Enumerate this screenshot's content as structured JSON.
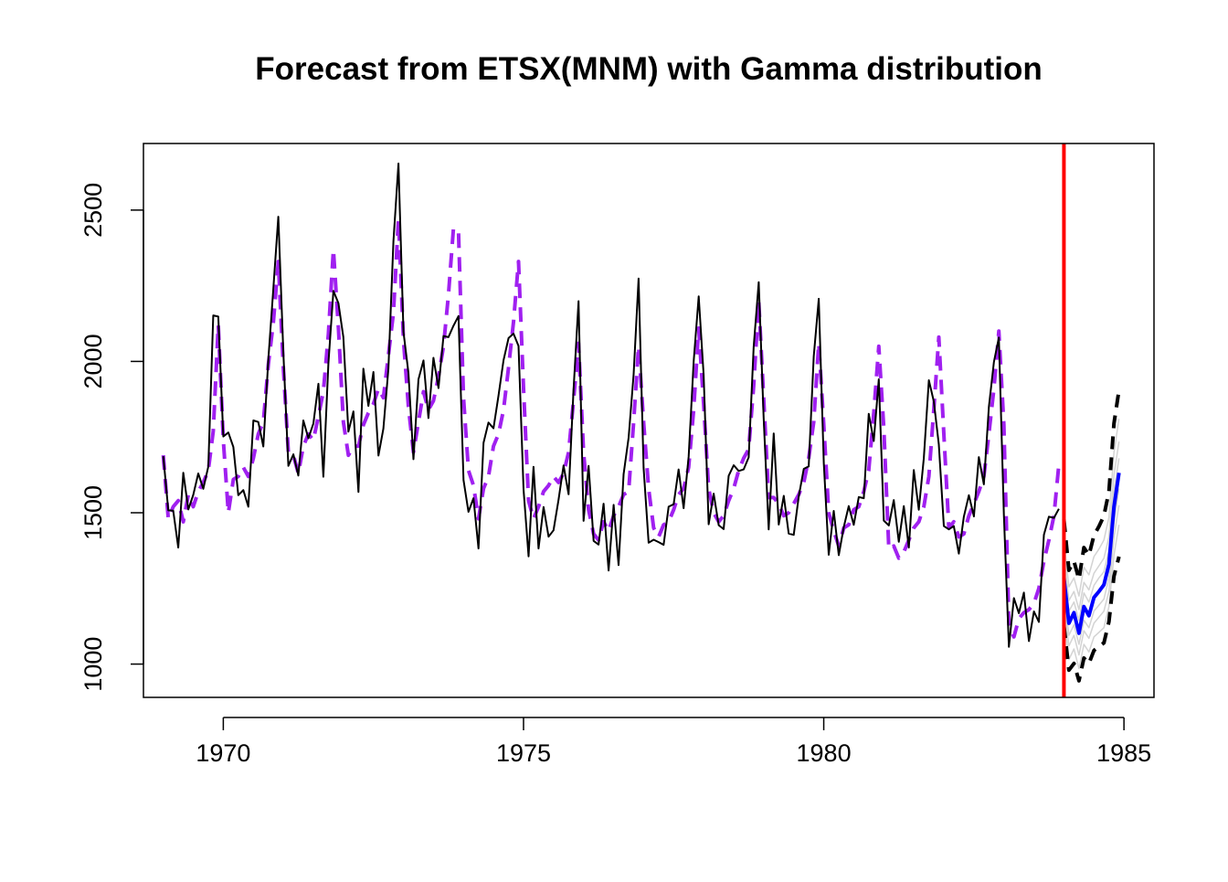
{
  "chart_data": {
    "type": "line",
    "title": "Forecast from ETSX(MNM) with Gamma distribution",
    "xlabel": "",
    "ylabel": "",
    "xlim": [
      1968.67,
      1985.5
    ],
    "ylim": [
      890,
      2720
    ],
    "x_ticks": [
      1970,
      1975,
      1980,
      1985
    ],
    "x_tick_labels": [
      "1970",
      "1975",
      "1980",
      "1985"
    ],
    "y_ticks": [
      1000,
      1500,
      2000,
      2500
    ],
    "y_tick_labels": [
      "1000",
      "1500",
      "2000",
      "2500"
    ],
    "grid": false,
    "legend": "none",
    "holdout_start": 1984.0,
    "colors": {
      "actuals": "#000000",
      "fitted": "#a020f0",
      "forecast": "#0000ff",
      "interval": "#000000",
      "quantiles": "#d3d3d3",
      "holdout_line": "#ff0000"
    },
    "series": [
      {
        "name": "actuals",
        "start": 1969.0,
        "frequency": 12,
        "values": [
          1687,
          1508,
          1507,
          1385,
          1632,
          1511,
          1559,
          1630,
          1579,
          1653,
          2152,
          2148,
          1752,
          1765,
          1717,
          1558,
          1575,
          1520,
          1805,
          1800,
          1719,
          2008,
          2242,
          2478,
          2030,
          1655,
          1693,
          1623,
          1805,
          1746,
          1795,
          1926,
          1619,
          1992,
          2233,
          2192,
          2080,
          1768,
          1835,
          1569,
          1976,
          1853,
          1965,
          1689,
          1778,
          1976,
          2397,
          2654,
          2097,
          1963,
          1677,
          1941,
          2003,
          1813,
          2012,
          1912,
          2084,
          2080,
          2118,
          2150,
          1608,
          1503,
          1548,
          1382,
          1731,
          1798,
          1779,
          1887,
          2004,
          2077,
          2092,
          2051,
          1577,
          1356,
          1652,
          1382,
          1519,
          1421,
          1442,
          1543,
          1656,
          1561,
          1905,
          2199,
          1473,
          1655,
          1407,
          1395,
          1530,
          1309,
          1526,
          1327,
          1627,
          1748,
          1958,
          2274,
          1648,
          1401,
          1411,
          1403,
          1394,
          1520,
          1528,
          1643,
          1515,
          1685,
          2000,
          2215,
          1956,
          1462,
          1563,
          1459,
          1446,
          1622,
          1657,
          1638,
          1643,
          1683,
          2050,
          2262,
          1813,
          1445,
          1762,
          1461,
          1556,
          1431,
          1427,
          1554,
          1645,
          1653,
          2016,
          2207,
          1665,
          1361,
          1506,
          1360,
          1453,
          1522,
          1460,
          1552,
          1548,
          1827,
          1737,
          1941,
          1474,
          1458,
          1542,
          1404,
          1522,
          1385,
          1641,
          1510,
          1681,
          1938,
          1868,
          1726,
          1456,
          1445,
          1456,
          1365,
          1487,
          1558,
          1488,
          1684,
          1594,
          1850,
          1998,
          2079,
          1494,
          1057,
          1218,
          1168,
          1236,
          1076,
          1174,
          1139,
          1427,
          1487,
          1483,
          1513
        ],
        "note_start": "January 1969"
      },
      {
        "name": "fitted",
        "start": 1969.0,
        "frequency": 12,
        "values": [
          1690,
          1480,
          1520,
          1540,
          1470,
          1560,
          1520,
          1570,
          1600,
          1640,
          1770,
          2120,
          1740,
          1500,
          1610,
          1620,
          1650,
          1620,
          1680,
          1760,
          1800,
          1990,
          2130,
          2330,
          1980,
          1700,
          1690,
          1630,
          1720,
          1760,
          1740,
          1820,
          1900,
          2090,
          2370,
          2110,
          1800,
          1690,
          1720,
          1720,
          1790,
          1830,
          1860,
          1910,
          1880,
          2020,
          2160,
          2470,
          2070,
          1850,
          1700,
          1800,
          1900,
          1840,
          1870,
          1950,
          2050,
          2220,
          2440,
          2430,
          1880,
          1640,
          1590,
          1480,
          1580,
          1620,
          1720,
          1760,
          1840,
          1980,
          2130,
          2330,
          1910,
          1540,
          1480,
          1520,
          1570,
          1590,
          1620,
          1600,
          1630,
          1700,
          1870,
          2060,
          1700,
          1510,
          1430,
          1410,
          1470,
          1440,
          1490,
          1520,
          1560,
          1570,
          1800,
          2050,
          1800,
          1580,
          1450,
          1420,
          1460,
          1470,
          1510,
          1560,
          1580,
          1650,
          1840,
          2110,
          1860,
          1580,
          1500,
          1470,
          1490,
          1540,
          1580,
          1640,
          1680,
          1710,
          1920,
          2200,
          1880,
          1550,
          1550,
          1530,
          1490,
          1500,
          1530,
          1560,
          1600,
          1680,
          1800,
          2060,
          1790,
          1500,
          1440,
          1390,
          1450,
          1460,
          1510,
          1520,
          1570,
          1640,
          1830,
          2050,
          1780,
          1380,
          1390,
          1350,
          1370,
          1410,
          1450,
          1470,
          1520,
          1620,
          1840,
          2080,
          1760,
          1450,
          1470,
          1420,
          1430,
          1490,
          1530,
          1570,
          1620,
          1760,
          1910,
          2100,
          1790,
          1130,
          1090,
          1150,
          1170,
          1180,
          1200,
          1250,
          1340,
          1410,
          1490,
          1660
        ],
        "note": "dashed purple fitted line"
      },
      {
        "name": "forecast",
        "start": 1984.0,
        "frequency": 12,
        "values": [
          1285,
          1135,
          1170,
          1102,
          1190,
          1160,
          1220,
          1240,
          1262,
          1330,
          1520,
          1632
        ]
      },
      {
        "name": "upper_interval",
        "start": 1984.0,
        "frequency": 12,
        "values": [
          1478,
          1310,
          1340,
          1280,
          1385,
          1360,
          1425,
          1455,
          1490,
          1570,
          1795,
          1905
        ]
      },
      {
        "name": "lower_interval",
        "start": 1984.0,
        "frequency": 12,
        "values": [
          1128,
          980,
          1002,
          945,
          1020,
          1002,
          1045,
          1058,
          1070,
          1140,
          1290,
          1355
        ]
      }
    ],
    "quantile_bands": [
      [
        1410,
        1255,
        1285,
        1225,
        1320,
        1295,
        1355,
        1380,
        1410,
        1485,
        1700,
        1810
      ],
      [
        1360,
        1210,
        1240,
        1180,
        1270,
        1245,
        1300,
        1325,
        1350,
        1420,
        1625,
        1735
      ],
      [
        1330,
        1175,
        1205,
        1145,
        1235,
        1205,
        1260,
        1285,
        1305,
        1375,
        1570,
        1680
      ],
      [
        1240,
        1095,
        1130,
        1065,
        1145,
        1120,
        1175,
        1195,
        1215,
        1285,
        1470,
        1580
      ],
      [
        1205,
        1060,
        1095,
        1030,
        1110,
        1085,
        1135,
        1155,
        1175,
        1240,
        1420,
        1525
      ],
      [
        1160,
        1015,
        1050,
        985,
        1065,
        1040,
        1090,
        1105,
        1120,
        1190,
        1360,
        1460
      ]
    ]
  }
}
